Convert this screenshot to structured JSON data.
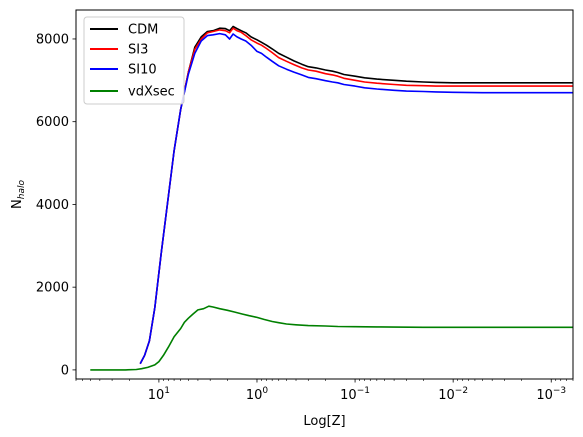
{
  "chart_data": {
    "type": "line",
    "xlabel": "Log[Z]",
    "ylabel_main": "N",
    "ylabel_sub": "halo",
    "x_scale": "log",
    "x_reversed": true,
    "xlim": [
      70,
      0.0006
    ],
    "ylim": [
      -220,
      8700
    ],
    "x_ticks": [
      {
        "value": 10,
        "base": "10",
        "exp": "1"
      },
      {
        "value": 1,
        "base": "10",
        "exp": "0"
      },
      {
        "value": 0.1,
        "base": "10",
        "exp": "−1"
      },
      {
        "value": 0.01,
        "base": "10",
        "exp": "−2"
      },
      {
        "value": 0.001,
        "base": "10",
        "exp": "−3"
      }
    ],
    "y_ticks": [
      {
        "value": 0,
        "label": "0"
      },
      {
        "value": 2000,
        "label": "2000"
      },
      {
        "value": 4000,
        "label": "4000"
      },
      {
        "value": 6000,
        "label": "6000"
      },
      {
        "value": 8000,
        "label": "8000"
      }
    ],
    "legend_position": "top-left",
    "series": [
      {
        "name": "CDM",
        "color": "#000000",
        "points": [
          [
            15.5,
            150
          ],
          [
            14,
            350
          ],
          [
            12.5,
            700
          ],
          [
            11,
            1500
          ],
          [
            9.5,
            2800
          ],
          [
            8,
            4200
          ],
          [
            7,
            5300
          ],
          [
            6,
            6300
          ],
          [
            5,
            7200
          ],
          [
            4.3,
            7800
          ],
          [
            3.7,
            8050
          ],
          [
            3.2,
            8180
          ],
          [
            2.8,
            8200
          ],
          [
            2.4,
            8260
          ],
          [
            2.1,
            8250
          ],
          [
            1.9,
            8200
          ],
          [
            1.75,
            8300
          ],
          [
            1.6,
            8250
          ],
          [
            1.45,
            8200
          ],
          [
            1.3,
            8150
          ],
          [
            1.15,
            8050
          ],
          [
            1.0,
            7980
          ],
          [
            0.9,
            7920
          ],
          [
            0.8,
            7850
          ],
          [
            0.7,
            7760
          ],
          [
            0.6,
            7650
          ],
          [
            0.5,
            7560
          ],
          [
            0.42,
            7470
          ],
          [
            0.35,
            7390
          ],
          [
            0.3,
            7330
          ],
          [
            0.25,
            7300
          ],
          [
            0.2,
            7250
          ],
          [
            0.17,
            7220
          ],
          [
            0.15,
            7190
          ],
          [
            0.13,
            7140
          ],
          [
            0.1,
            7100
          ],
          [
            0.08,
            7060
          ],
          [
            0.06,
            7030
          ],
          [
            0.04,
            7000
          ],
          [
            0.03,
            6980
          ],
          [
            0.02,
            6960
          ],
          [
            0.015,
            6950
          ],
          [
            0.01,
            6940
          ],
          [
            0.005,
            6940
          ],
          [
            0.002,
            6940
          ],
          [
            0.001,
            6940
          ],
          [
            0.0006,
            6940
          ]
        ]
      },
      {
        "name": "SI3",
        "color": "#ff0000",
        "points": [
          [
            15.5,
            150
          ],
          [
            14,
            350
          ],
          [
            12.5,
            700
          ],
          [
            11,
            1500
          ],
          [
            9.5,
            2800
          ],
          [
            8,
            4200
          ],
          [
            7,
            5300
          ],
          [
            6,
            6300
          ],
          [
            5,
            7200
          ],
          [
            4.3,
            7750
          ],
          [
            3.7,
            8000
          ],
          [
            3.2,
            8150
          ],
          [
            2.8,
            8180
          ],
          [
            2.4,
            8220
          ],
          [
            2.1,
            8200
          ],
          [
            1.9,
            8150
          ],
          [
            1.75,
            8260
          ],
          [
            1.6,
            8200
          ],
          [
            1.45,
            8160
          ],
          [
            1.3,
            8080
          ],
          [
            1.15,
            7980
          ],
          [
            1.0,
            7900
          ],
          [
            0.9,
            7850
          ],
          [
            0.8,
            7770
          ],
          [
            0.7,
            7670
          ],
          [
            0.6,
            7550
          ],
          [
            0.5,
            7460
          ],
          [
            0.42,
            7380
          ],
          [
            0.35,
            7300
          ],
          [
            0.3,
            7250
          ],
          [
            0.25,
            7220
          ],
          [
            0.2,
            7160
          ],
          [
            0.17,
            7130
          ],
          [
            0.15,
            7100
          ],
          [
            0.13,
            7050
          ],
          [
            0.1,
            7000
          ],
          [
            0.08,
            6960
          ],
          [
            0.06,
            6930
          ],
          [
            0.04,
            6900
          ],
          [
            0.03,
            6880
          ],
          [
            0.02,
            6870
          ],
          [
            0.015,
            6860
          ],
          [
            0.01,
            6860
          ],
          [
            0.005,
            6860
          ],
          [
            0.002,
            6860
          ],
          [
            0.001,
            6860
          ],
          [
            0.0006,
            6860
          ]
        ]
      },
      {
        "name": "SI10",
        "color": "#0000ff",
        "points": [
          [
            15.5,
            150
          ],
          [
            14,
            350
          ],
          [
            12.5,
            700
          ],
          [
            11,
            1500
          ],
          [
            9.5,
            2800
          ],
          [
            8,
            4200
          ],
          [
            7,
            5300
          ],
          [
            6,
            6300
          ],
          [
            5,
            7150
          ],
          [
            4.3,
            7650
          ],
          [
            3.7,
            7950
          ],
          [
            3.2,
            8080
          ],
          [
            2.8,
            8100
          ],
          [
            2.4,
            8130
          ],
          [
            2.1,
            8100
          ],
          [
            1.9,
            8000
          ],
          [
            1.75,
            8120
          ],
          [
            1.6,
            8050
          ],
          [
            1.45,
            8000
          ],
          [
            1.3,
            7950
          ],
          [
            1.15,
            7850
          ],
          [
            1.0,
            7700
          ],
          [
            0.9,
            7650
          ],
          [
            0.8,
            7560
          ],
          [
            0.7,
            7460
          ],
          [
            0.6,
            7350
          ],
          [
            0.5,
            7270
          ],
          [
            0.42,
            7200
          ],
          [
            0.35,
            7130
          ],
          [
            0.3,
            7070
          ],
          [
            0.25,
            7040
          ],
          [
            0.2,
            6990
          ],
          [
            0.17,
            6960
          ],
          [
            0.15,
            6940
          ],
          [
            0.13,
            6900
          ],
          [
            0.1,
            6860
          ],
          [
            0.08,
            6820
          ],
          [
            0.06,
            6790
          ],
          [
            0.04,
            6760
          ],
          [
            0.03,
            6740
          ],
          [
            0.02,
            6730
          ],
          [
            0.015,
            6720
          ],
          [
            0.01,
            6710
          ],
          [
            0.005,
            6700
          ],
          [
            0.002,
            6700
          ],
          [
            0.001,
            6700
          ],
          [
            0.0006,
            6700
          ]
        ]
      },
      {
        "name": "vdXsec",
        "color": "#008000",
        "points": [
          [
            50,
            0
          ],
          [
            40,
            0
          ],
          [
            30,
            0
          ],
          [
            22,
            0
          ],
          [
            17,
            10
          ],
          [
            15,
            30
          ],
          [
            13,
            60
          ],
          [
            11,
            120
          ],
          [
            10,
            200
          ],
          [
            9,
            350
          ],
          [
            8,
            550
          ],
          [
            7,
            800
          ],
          [
            6,
            1000
          ],
          [
            5.5,
            1150
          ],
          [
            5,
            1250
          ],
          [
            4.5,
            1350
          ],
          [
            4.0,
            1450
          ],
          [
            3.5,
            1480
          ],
          [
            3.1,
            1540
          ],
          [
            2.8,
            1520
          ],
          [
            2.4,
            1480
          ],
          [
            2.0,
            1440
          ],
          [
            1.7,
            1400
          ],
          [
            1.4,
            1350
          ],
          [
            1.2,
            1310
          ],
          [
            1.0,
            1270
          ],
          [
            0.85,
            1220
          ],
          [
            0.7,
            1170
          ],
          [
            0.6,
            1140
          ],
          [
            0.5,
            1110
          ],
          [
            0.4,
            1090
          ],
          [
            0.3,
            1070
          ],
          [
            0.2,
            1060
          ],
          [
            0.15,
            1050
          ],
          [
            0.1,
            1045
          ],
          [
            0.06,
            1040
          ],
          [
            0.04,
            1035
          ],
          [
            0.02,
            1030
          ],
          [
            0.01,
            1030
          ],
          [
            0.005,
            1030
          ],
          [
            0.002,
            1030
          ],
          [
            0.001,
            1030
          ],
          [
            0.0006,
            1030
          ]
        ]
      }
    ]
  }
}
